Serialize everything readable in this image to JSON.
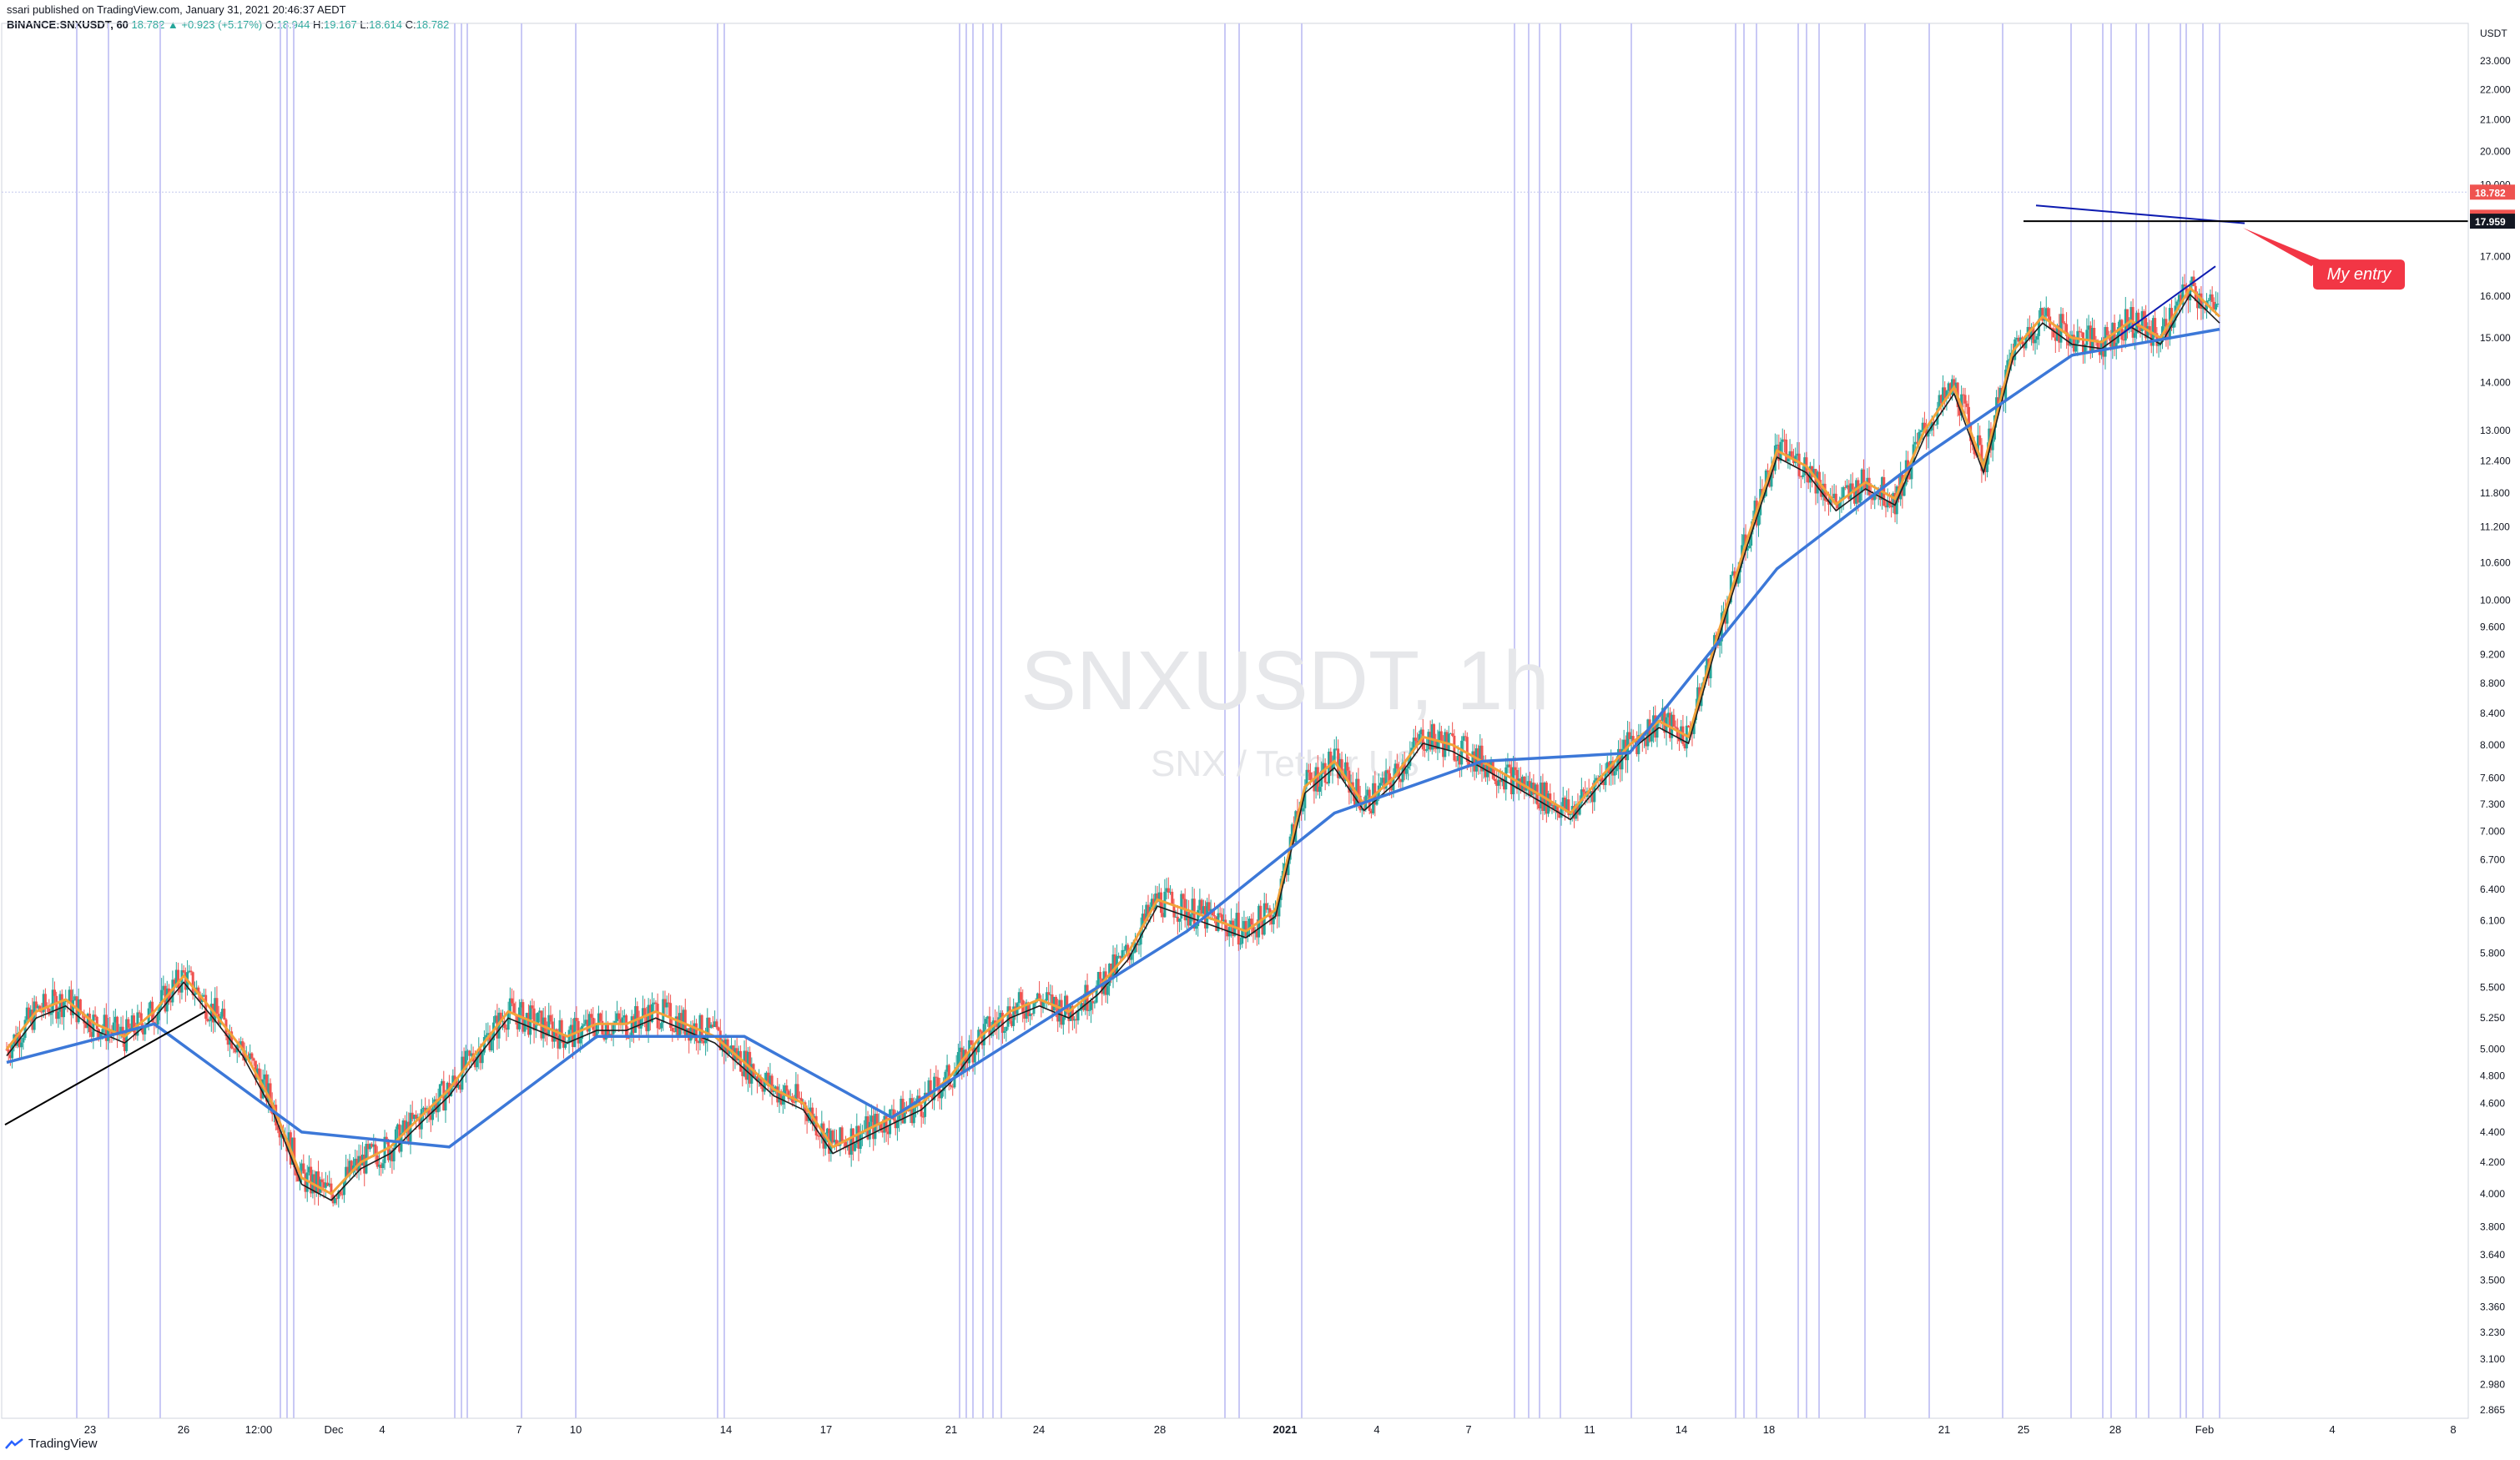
{
  "header": {
    "published_line": "ssari published on TradingView.com, January 31, 2021 20:46:37 AEDT",
    "symbol": "BINANCE:SNXUSDT, 60",
    "change": "18.782 ▲ +0.923 (+5.17%)",
    "ohlc": [
      {
        "label": "O:",
        "value": "18.944"
      },
      {
        "label": "H:",
        "value": "19.167"
      },
      {
        "label": "L:",
        "value": "18.614"
      },
      {
        "label": "C:",
        "value": "18.782"
      }
    ]
  },
  "watermark": {
    "title": "SNXUSDT, 1h",
    "subtitle": "SNX / Tether US"
  },
  "footer": {
    "brand": "TradingView"
  },
  "annotation": {
    "label": "My entry",
    "color": "#f23645"
  },
  "colors": {
    "ma_fast": "#1e1e1e",
    "ma_mid": "#f2a23a",
    "ma_slow": "#3c78d8",
    "candle_up": "#26a69a",
    "candle_down": "#ef5350",
    "vline": "#c9c9f5",
    "trendline": "#0d1bb0"
  },
  "chart_data": {
    "type": "line",
    "title": "SNXUSDT, 1h",
    "y_axis": {
      "unit": "USDT",
      "scale": "log",
      "range": [
        2.865,
        24.0
      ],
      "ticks": [
        "23.000",
        "22.000",
        "21.000",
        "20.000",
        "19.000",
        "17.000",
        "16.000",
        "15.000",
        "14.000",
        "13.000",
        "12.400",
        "11.800",
        "11.200",
        "10.600",
        "10.000",
        "9.600",
        "9.200",
        "8.800",
        "8.400",
        "8.000",
        "7.600",
        "7.300",
        "7.000",
        "6.700",
        "6.400",
        "6.100",
        "5.800",
        "5.500",
        "5.250",
        "5.000",
        "4.800",
        "4.600",
        "4.400",
        "4.200",
        "4.000",
        "3.800",
        "3.640",
        "3.500",
        "3.360",
        "3.230",
        "3.100",
        "2.980",
        "2.865"
      ],
      "labels": [
        {
          "text": "18.782",
          "value": 18.782,
          "bg": "#ef5350"
        },
        {
          "text": "13:25",
          "value": 18.35,
          "bg": "#ef5350"
        },
        {
          "text": "17.959",
          "value": 17.959,
          "bg": "#131722"
        }
      ]
    },
    "x_axis": {
      "labels": [
        "23",
        "26",
        "12:00",
        "Dec",
        "4",
        "7",
        "10",
        "14",
        "17",
        "21",
        "24",
        "28",
        "2021",
        "4",
        "7",
        "11",
        "14",
        "18",
        "21",
        "25",
        "28",
        "Feb",
        "4",
        "8"
      ]
    },
    "series": [
      {
        "role": "price",
        "x": [
          0,
          1,
          2,
          3,
          4,
          5,
          6,
          7,
          8,
          9,
          10,
          11,
          12,
          13,
          14,
          15,
          16,
          17,
          18,
          19,
          20,
          21,
          22,
          23,
          24,
          25,
          26,
          27,
          28,
          29,
          30,
          31,
          32,
          33,
          34,
          35,
          36,
          37,
          38,
          39,
          40,
          41,
          42,
          43,
          44,
          45,
          46,
          47,
          48,
          49,
          50,
          51,
          52,
          53,
          54,
          55,
          56,
          57,
          58,
          59,
          60,
          61,
          62,
          63,
          64,
          65,
          66,
          67,
          68,
          69,
          70,
          71,
          72,
          73,
          74,
          75
        ],
        "values": [
          5.0,
          5.3,
          5.4,
          5.2,
          5.1,
          5.3,
          5.6,
          5.3,
          5.0,
          4.6,
          4.1,
          4.0,
          4.2,
          4.3,
          4.5,
          4.7,
          5.0,
          5.3,
          5.2,
          5.1,
          5.2,
          5.2,
          5.3,
          5.2,
          5.1,
          4.9,
          4.7,
          4.6,
          4.3,
          4.4,
          4.5,
          4.6,
          4.8,
          5.1,
          5.3,
          5.4,
          5.3,
          5.5,
          5.8,
          6.3,
          6.2,
          6.1,
          6.0,
          6.2,
          7.5,
          7.8,
          7.3,
          7.6,
          8.1,
          8.0,
          7.8,
          7.6,
          7.4,
          7.2,
          7.6,
          8.0,
          8.3,
          8.1,
          9.5,
          11.0,
          12.6,
          12.3,
          11.6,
          12.0,
          11.7,
          13.0,
          13.9,
          12.3,
          14.7,
          15.5,
          15.0,
          14.9,
          15.4,
          15.0,
          16.2,
          15.5
        ]
      },
      {
        "role": "ma_slow",
        "x": [
          0,
          5,
          10,
          15,
          20,
          25,
          30,
          35,
          40,
          45,
          50,
          55,
          60,
          65,
          70,
          75
        ],
        "values": [
          4.9,
          5.2,
          4.4,
          4.3,
          5.1,
          5.1,
          4.5,
          5.2,
          6.0,
          7.2,
          7.8,
          7.9,
          10.5,
          12.5,
          14.6,
          15.2
        ]
      }
    ]
  }
}
